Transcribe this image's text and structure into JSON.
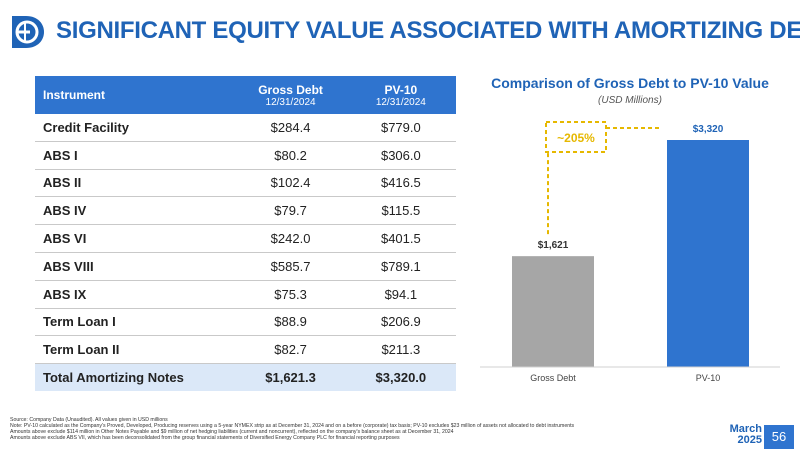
{
  "title": "SIGNIFICANT EQUITY VALUE ASSOCIATED WITH AMORTIZING DEBT",
  "table": {
    "headers": {
      "instrument": "Instrument",
      "gross_debt": "Gross Debt",
      "gross_debt_date": "12/31/2024",
      "pv10": "PV-10",
      "pv10_date": "12/31/2024"
    },
    "rows": [
      {
        "name": "Credit Facility",
        "gross": "$284.4",
        "pv": "$779.0"
      },
      {
        "name": "ABS I",
        "gross": "$80.2",
        "pv": "$306.0"
      },
      {
        "name": "ABS II",
        "gross": "$102.4",
        "pv": "$416.5"
      },
      {
        "name": "ABS IV",
        "gross": "$79.7",
        "pv": "$115.5"
      },
      {
        "name": "ABS VI",
        "gross": "$242.0",
        "pv": "$401.5"
      },
      {
        "name": "ABS VIII",
        "gross": "$585.7",
        "pv": "$789.1"
      },
      {
        "name": "ABS IX",
        "gross": "$75.3",
        "pv": "$94.1"
      },
      {
        "name": "Term Loan I",
        "gross": "$88.9",
        "pv": "$206.9"
      },
      {
        "name": "Term Loan II",
        "gross": "$82.7",
        "pv": "$211.3"
      }
    ],
    "total": {
      "name": "Total Amortizing Notes",
      "gross": "$1,621.3",
      "pv": "$3,320.0"
    }
  },
  "chart_data": {
    "type": "bar",
    "title": "Comparison of Gross Debt to PV-10 Value",
    "subtitle": "(USD Millions)",
    "categories": [
      "Gross Debt",
      "PV-10"
    ],
    "values": [
      1621,
      3320
    ],
    "data_labels": [
      "$1,621",
      "$3,320"
    ],
    "colors": [
      "#a6a6a6",
      "#2f74cf"
    ],
    "annotation": "~205%",
    "annotation_color": "#e6b800",
    "ylim": [
      0,
      3320
    ],
    "grid": false
  },
  "footnotes": [
    "Source: Company Data (Unaudited). All values given in USD millions",
    "Note: PV-10 calculated as the Company's Proved, Developed, Producing reserves using a 5-year NYMEX strip as at December 31, 2024 and on a before (corporate) tax basis; PV-10 excludes $23 million of assets not allocated to debt instruments",
    "Amounts above exclude $114 million in Other Notes Payable and $9 million of net hedging liabilities (current and noncurrent), reflected on the company's balance sheet as at December 31, 2024",
    "Amounts above exclude ABS VII, which has been deconsolidated from the group financial statements of Diversified Energy Company PLC for financial reporting purposes"
  ],
  "footer": {
    "month": "March",
    "year": "2025",
    "page": "56"
  },
  "colors": {
    "brand": "#1f63b6",
    "header_bg": "#2f74cf",
    "total_bg": "#dbe8f8"
  }
}
